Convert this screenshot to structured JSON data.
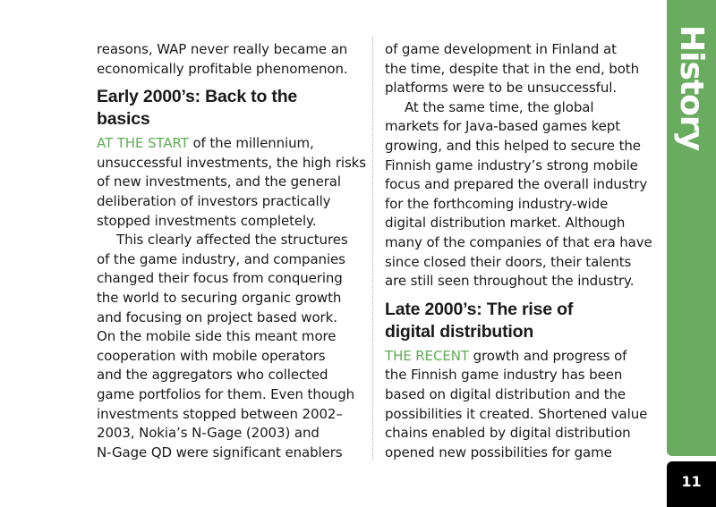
{
  "section_tab": {
    "label": "History",
    "color": "#6aac5f"
  },
  "page_number": "11",
  "accent_color": "#5fab55",
  "left": {
    "intro_lines": [
      "reasons, WAP never really became an",
      "economically profitable phenomenon."
    ],
    "heading_lines": [
      "Early 2000’s: Back to the",
      "basics"
    ],
    "p1": {
      "lead": "AT THE START",
      "first_rest": " of the millennium,",
      "lines": [
        "unsuccessful investments, the high risks",
        "of new investments, and the general",
        "deliberation of investors practically",
        "stopped investments completely."
      ]
    },
    "p2": {
      "lines": [
        "This clearly affected the structures",
        "of the game industry, and companies",
        "changed their focus from conquering",
        "the world to securing organic growth",
        "and focusing on project based work.",
        "On the mobile side this meant more",
        "cooperation with mobile operators",
        "and the aggregators who collected",
        "game portfolios for them. Even though",
        "investments stopped between 2002–",
        "2003, Nokia’s N-Gage (2003) and",
        "N-Gage QD were significant enablers"
      ]
    }
  },
  "right": {
    "intro_lines": [
      "of game development in Finland at",
      "the time, despite that in the end, both",
      "platforms were to be unsuccessful."
    ],
    "p2": {
      "lines": [
        "At the same time, the global",
        "markets for Java-based games kept",
        "growing, and this helped to secure the",
        "Finnish game industry’s strong mobile",
        "focus and prepared the overall industry",
        "for the forthcoming industry-wide",
        "digital distribution market. Although",
        "many of the companies of that era have",
        "since closed their doors, their talents",
        "are still seen throughout the industry."
      ]
    },
    "heading_lines": [
      "Late 2000’s: The rise of",
      "digital distribution"
    ],
    "p3": {
      "lead": "THE RECENT",
      "first_rest": " growth and progress of",
      "lines": [
        "the Finnish game industry has been",
        "based on digital distribution and the",
        "possibilities it created. Shortened value",
        "chains enabled by digital distribution",
        "opened new possibilities for game"
      ]
    }
  }
}
